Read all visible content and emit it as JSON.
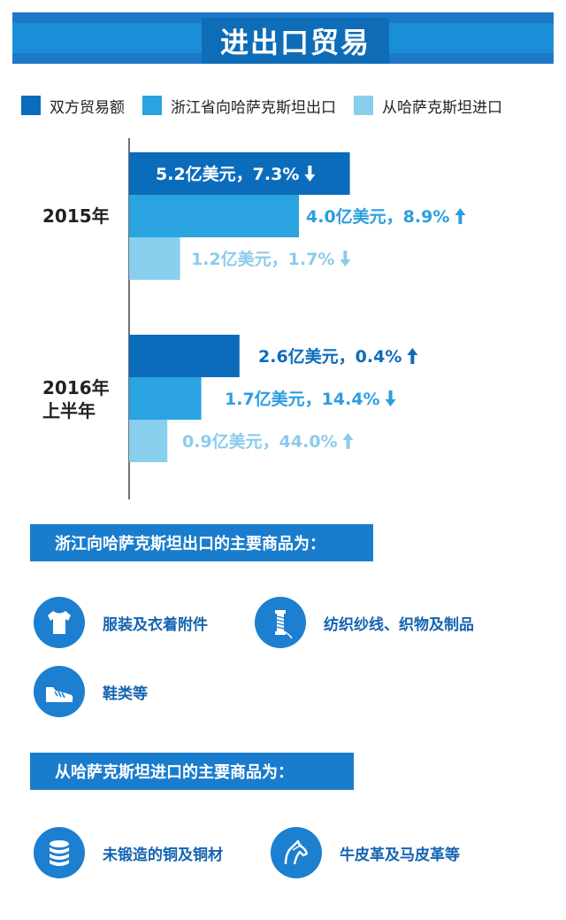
{
  "header": {
    "title": "进出口贸易"
  },
  "legend": [
    {
      "label": "双方贸易额",
      "color": "#0c6cbc"
    },
    {
      "label": "浙江省向哈萨克斯坦出口",
      "color": "#2aa3e0"
    },
    {
      "label": "从哈萨克斯坦进口",
      "color": "#88cfee"
    }
  ],
  "chart_data": {
    "type": "bar",
    "orientation": "horizontal",
    "categories": [
      "2015年",
      "2016年上半年"
    ],
    "category_lines": [
      [
        "2015年"
      ],
      [
        "2016年",
        "上半年"
      ]
    ],
    "series": [
      {
        "name": "双方贸易额",
        "color": "#0c6cbc",
        "text_color": "#0c6cbc",
        "values": [
          5.2,
          2.6
        ],
        "changes": [
          "7.3%",
          "0.4%"
        ],
        "directions": [
          "down",
          "up"
        ],
        "labels": [
          "5.2亿美元，7.3%",
          "2.6亿美元，0.4%"
        ]
      },
      {
        "name": "浙江省向哈萨克斯坦出口",
        "color": "#2aa3e0",
        "text_color": "#2b9ee0",
        "values": [
          4.0,
          1.7
        ],
        "changes": [
          "8.9%",
          "14.4%"
        ],
        "directions": [
          "up",
          "down"
        ],
        "labels": [
          "4.0亿美元，8.9%",
          "1.7亿美元，14.4%"
        ]
      },
      {
        "name": "从哈萨克斯坦进口",
        "color": "#88cfee",
        "text_color": "#8ccbec",
        "values": [
          1.2,
          0.9
        ],
        "changes": [
          "1.7%",
          "44.0%"
        ],
        "directions": [
          "down",
          "up"
        ],
        "labels": [
          "1.2亿美元，1.7%",
          "0.9亿美元，44.0%"
        ]
      }
    ],
    "unit": "亿美元"
  },
  "exports": {
    "title": "浙江向哈萨克斯坦出口的主要商品为：",
    "items": [
      {
        "icon": "tshirt-icon",
        "label": "服装及衣着附件"
      },
      {
        "icon": "spool-icon",
        "label": "纺织纱线、织物及制品"
      },
      {
        "icon": "shoe-icon",
        "label": "鞋类等"
      }
    ]
  },
  "imports": {
    "title": "从哈萨克斯坦进口的主要商品为：",
    "items": [
      {
        "icon": "copper-stack-icon",
        "label": "未锻造的铜及铜材"
      },
      {
        "icon": "horse-icon",
        "label": "牛皮革及马皮革等"
      }
    ]
  }
}
